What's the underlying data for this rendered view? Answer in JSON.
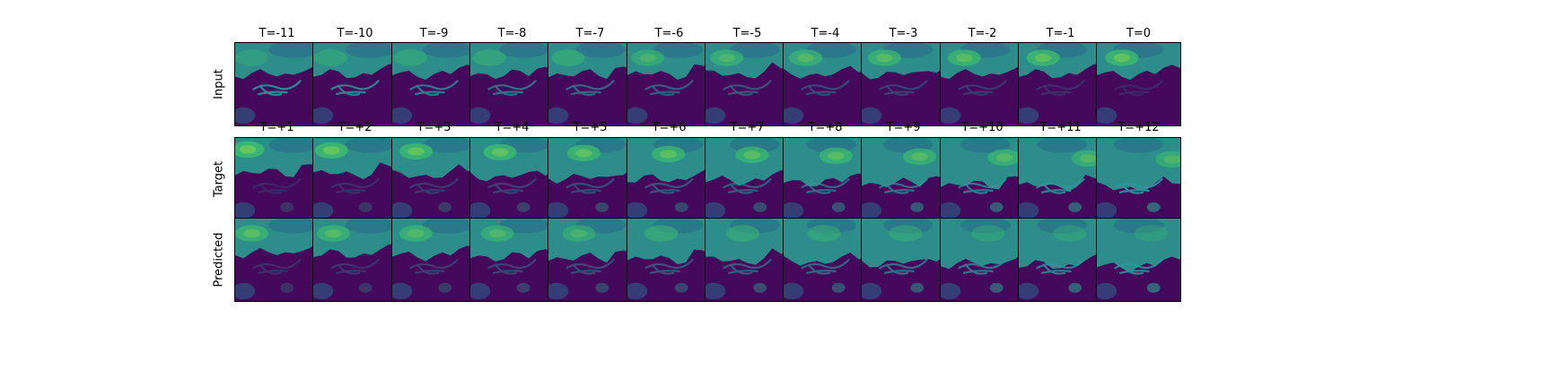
{
  "colormap": "viridis",
  "palette": {
    "bg": "#44095a",
    "band_dark": "#2a6a8a",
    "band_mid": "#2c8d8a",
    "band_bright": "#3ebc6f",
    "highlight": "#86d44a",
    "ridge": "#2f96a0"
  },
  "rows": [
    {
      "label": "Input",
      "kind": "input",
      "titles": [
        "T=-11",
        "T=-10",
        "T=-9",
        "T=-8",
        "T=-7",
        "T=-6",
        "T=-5",
        "T=-4",
        "T=-3",
        "T=-2",
        "T=-1",
        "T=0"
      ]
    },
    {
      "label": "Target",
      "kind": "target",
      "titles": [
        "T=+1",
        "T=+2",
        "T=+3",
        "T=+4",
        "T=+5",
        "T=+6",
        "T=+7",
        "T=+8",
        "T=+9",
        "T=+10",
        "T=+11",
        "T=+12"
      ]
    },
    {
      "label": "Predicted",
      "kind": "predicted",
      "titles": []
    }
  ]
}
